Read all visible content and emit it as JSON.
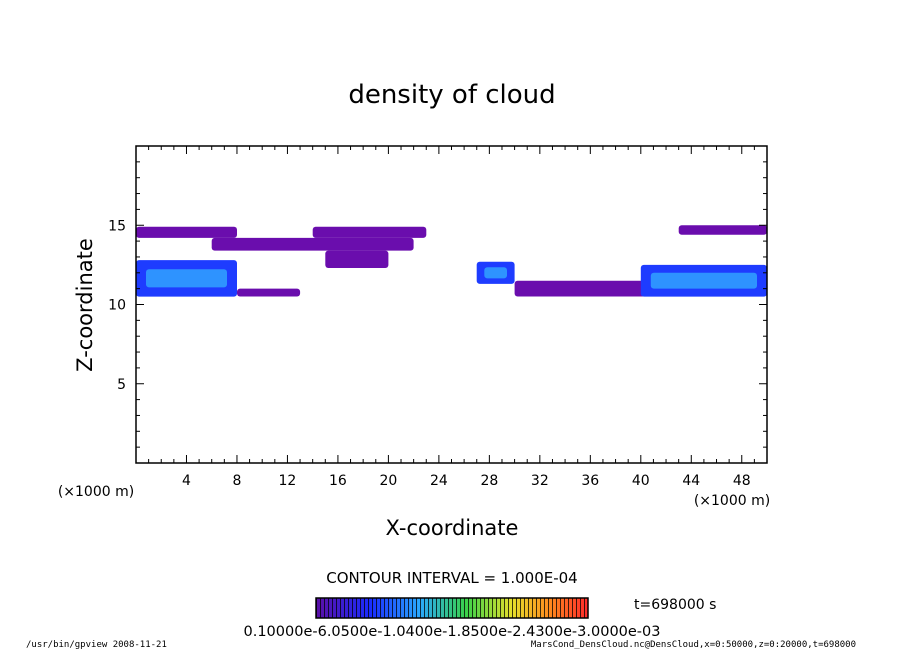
{
  "chart_data": {
    "type": "heatmap",
    "title": "density of cloud",
    "xlabel": "X-coordinate",
    "ylabel": "Z-coordinate",
    "x_unit": "(×1000 m)",
    "z_unit": "(×1000 m)",
    "xlim": [
      0,
      50
    ],
    "ylim": [
      0,
      20
    ],
    "x_ticks": [
      "4",
      "8",
      "12",
      "16",
      "20",
      "24",
      "28",
      "32",
      "36",
      "40",
      "44",
      "48"
    ],
    "y_ticks": [
      "5",
      "10",
      "15"
    ],
    "contour_interval": "CONTOUR INTERVAL = 1.000E-04",
    "time_label": "t=698000 s",
    "colorbar_labels": "0.10000e-6.0500e-1.0400e-1.8500e-2.4300e-3.0000e-03",
    "colorbar_min": 1e-07,
    "colorbar_max": 0.003,
    "colors": {
      "low": "#6a0dad",
      "mid": "#1e3cff",
      "high": "#35b8ff"
    },
    "cloud_regions": [
      {
        "x": [
          0,
          8
        ],
        "z": [
          14.2,
          14.9
        ],
        "level": "low"
      },
      {
        "x": [
          6,
          22
        ],
        "z": [
          13.4,
          14.2
        ],
        "level": "low"
      },
      {
        "x": [
          14,
          23
        ],
        "z": [
          14.2,
          14.9
        ],
        "level": "low"
      },
      {
        "x": [
          15,
          20
        ],
        "z": [
          12.3,
          13.4
        ],
        "level": "low"
      },
      {
        "x": [
          0,
          8
        ],
        "z": [
          10.5,
          12.8
        ],
        "level": "mid"
      },
      {
        "x": [
          8,
          13
        ],
        "z": [
          10.5,
          11.0
        ],
        "level": "low"
      },
      {
        "x": [
          27,
          30
        ],
        "z": [
          11.3,
          12.7
        ],
        "level": "mid"
      },
      {
        "x": [
          30,
          41
        ],
        "z": [
          10.5,
          11.5
        ],
        "level": "low"
      },
      {
        "x": [
          40,
          50
        ],
        "z": [
          10.5,
          12.5
        ],
        "level": "mid"
      },
      {
        "x": [
          43,
          50
        ],
        "z": [
          14.4,
          15.0
        ],
        "level": "low"
      }
    ]
  },
  "footer": {
    "left": "/usr/bin/gpview  2008-11-21",
    "right": "MarsCond_DensCloud.nc@DensCloud,x=0:50000,z=0:20000,t=698000"
  }
}
